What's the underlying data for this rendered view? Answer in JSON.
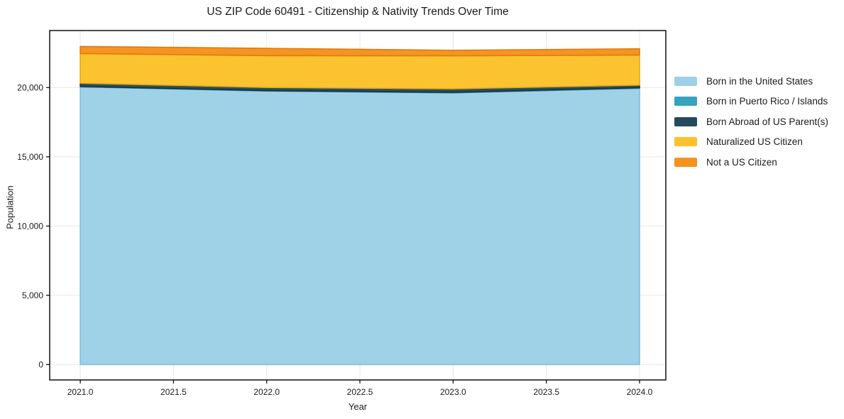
{
  "title": "US ZIP Code 60491 - Citizenship & Nativity Trends Over Time",
  "colors": {
    "background": "#ffffff",
    "grid": "#e7e7e7",
    "spine": "#000000",
    "tick": "#000000",
    "text": "#1a1a1a"
  },
  "chart_data": {
    "type": "area",
    "stacked": true,
    "title": "US ZIP Code 60491 - Citizenship & Nativity Trends Over Time",
    "xlabel": "Year",
    "ylabel": "Population",
    "x": [
      2021,
      2022,
      2023,
      2024
    ],
    "series": [
      {
        "name": "Born in the United States",
        "color": "#9dd0e7",
        "edge": "#82bedc",
        "values": [
          20050,
          19750,
          19620,
          19950
        ]
      },
      {
        "name": "Born in Puerto Rico / Islands",
        "color": "#35a3be",
        "edge": "#2b87a0",
        "values": [
          30,
          30,
          30,
          40
        ]
      },
      {
        "name": "Born Abroad of US Parent(s)",
        "color": "#26495c",
        "edge": "#17333f",
        "values": [
          240,
          225,
          260,
          190
        ]
      },
      {
        "name": "Naturalized US Citizen",
        "color": "#fcc22d",
        "edge": "#e8a90e",
        "values": [
          2135,
          2305,
          2380,
          2170
        ]
      },
      {
        "name": "Not a US Citizen",
        "color": "#f6921e",
        "edge": "#de7b10",
        "values": [
          515,
          520,
          400,
          450
        ]
      }
    ],
    "xticks": [
      2021.0,
      2021.5,
      2022.0,
      2022.5,
      2023.0,
      2023.5,
      2024.0
    ],
    "xtick_labels": [
      "2021.0",
      "2021.5",
      "2022.0",
      "2022.5",
      "2023.0",
      "2023.5",
      "2024.0"
    ],
    "yticks": [
      0,
      5000,
      10000,
      15000,
      20000
    ],
    "ytick_labels": [
      "0",
      "5,000",
      "10,000",
      "15,000",
      "20,000"
    ],
    "xlim": [
      2020.836,
      2024.141
    ],
    "ylim": [
      -1113,
      24118
    ],
    "grid": true,
    "legend_position": "right"
  }
}
